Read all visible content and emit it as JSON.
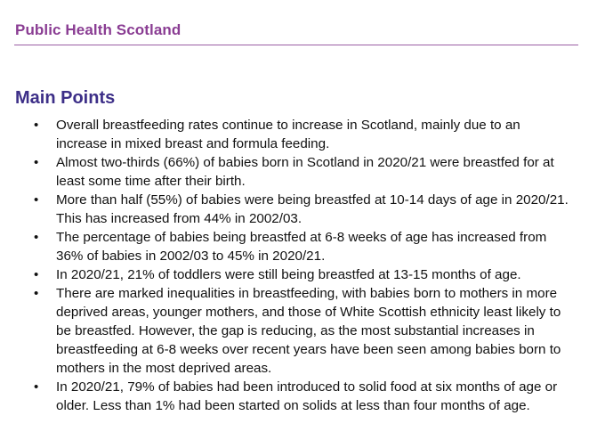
{
  "header": {
    "org_name": "Public Health Scotland",
    "accent_color": "#8a3d93",
    "rule_color": "#9b5fa3"
  },
  "section": {
    "title": "Main Points",
    "title_color": "#3d2f88",
    "bullet_glyph": "•"
  },
  "points": [
    {
      "lines": [
        "Overall breastfeeding rates continue to increase in Scotland, mainly due to an",
        "increase in mixed breast and formula feeding."
      ]
    },
    {
      "lines": [
        "Almost two-thirds (66%) of babies born in Scotland in 2020/21 were breastfed for at",
        "least some time after their birth."
      ]
    },
    {
      "lines": [
        "More than half (55%) of babies were being breastfed at 10-14 days of age in 2020/21.",
        "This has increased from 44% in 2002/03."
      ]
    },
    {
      "lines": [
        "The percentage of babies being breastfed at 6-8 weeks of age has increased from",
        "36% of babies in 2002/03 to 45% in 2020/21."
      ]
    },
    {
      "lines": [
        "In 2020/21, 21% of toddlers were still being breastfed at 13-15 months of age."
      ]
    },
    {
      "lines": [
        "There are marked inequalities in breastfeeding, with babies born to mothers in more",
        "deprived areas, younger mothers, and those of White Scottish ethnicity least likely to",
        "be breastfed.  However, the gap is reducing, as the most substantial increases in",
        "breastfeeding at 6-8 weeks over recent years have been seen among babies born to",
        "mothers in the most deprived areas."
      ]
    },
    {
      "lines": [
        "In 2020/21, 79% of babies had been introduced to solid food at six months of age or",
        "older.  Less than 1% had been started on solids at less than four months of age."
      ]
    }
  ]
}
